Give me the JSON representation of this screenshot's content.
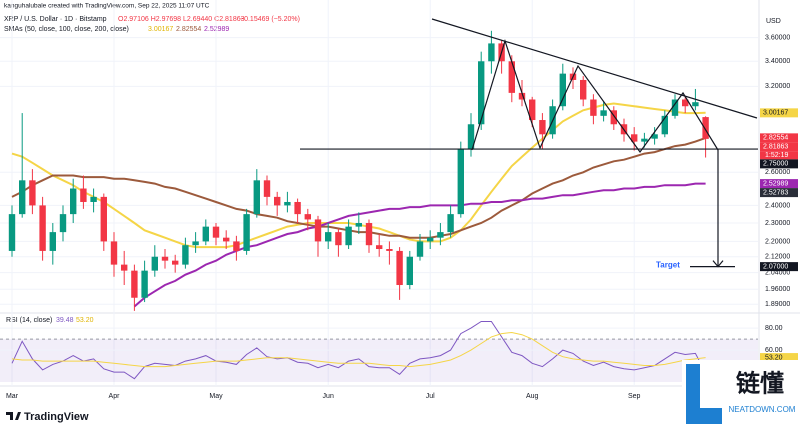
{
  "header": {
    "credit": "kanguhalubale created with TradingView.com, Sep 22, 2025 11:07 UTC",
    "symbol": "XRP / U.S. Dollar · 1D · Bitstamp",
    "ohlc_text": "O2.97106 H2.97698 L2.69440 C2.81863",
    "change": "−0.15469 (−5.20%)",
    "sma_title": "SMAs (50, close, 100, close, 200, close)",
    "sma_values": [
      "3.00167",
      "2.82554",
      "2.52989"
    ],
    "currency": "USD"
  },
  "chart_data": {
    "type": "candlestick",
    "log_scale": true,
    "up_color": "#089981",
    "down_color": "#f23645",
    "categories": [
      "Mar",
      null,
      null,
      null,
      null,
      null,
      null,
      null,
      null,
      null,
      "Apr",
      null,
      null,
      null,
      null,
      null,
      null,
      null,
      null,
      null,
      "May",
      null,
      null,
      null,
      null,
      null,
      null,
      null,
      null,
      null,
      null,
      "Jun",
      null,
      null,
      null,
      null,
      null,
      null,
      null,
      null,
      null,
      "Jul",
      null,
      null,
      null,
      null,
      null,
      null,
      null,
      null,
      null,
      "Aug",
      null,
      null,
      null,
      null,
      null,
      null,
      null,
      null,
      null,
      "Sep",
      null,
      null,
      null,
      null,
      null,
      null,
      null
    ],
    "ohlc": [
      [
        2.15,
        2.4,
        2.12,
        2.35
      ],
      [
        2.35,
        3.0,
        2.33,
        2.55
      ],
      [
        2.55,
        2.62,
        2.35,
        2.4
      ],
      [
        2.4,
        2.45,
        2.1,
        2.15
      ],
      [
        2.15,
        2.3,
        2.08,
        2.25
      ],
      [
        2.25,
        2.4,
        2.2,
        2.35
      ],
      [
        2.35,
        2.56,
        2.3,
        2.5
      ],
      [
        2.5,
        2.58,
        2.38,
        2.42
      ],
      [
        2.42,
        2.5,
        2.36,
        2.45
      ],
      [
        2.45,
        2.47,
        2.15,
        2.2
      ],
      [
        2.2,
        2.25,
        2.02,
        2.08
      ],
      [
        2.08,
        2.15,
        1.98,
        2.05
      ],
      [
        2.05,
        2.08,
        1.86,
        1.92
      ],
      [
        1.92,
        2.1,
        1.9,
        2.05
      ],
      [
        2.05,
        2.18,
        2.02,
        2.12
      ],
      [
        2.12,
        2.16,
        2.06,
        2.1
      ],
      [
        2.1,
        2.13,
        2.04,
        2.08
      ],
      [
        2.08,
        2.22,
        2.06,
        2.18
      ],
      [
        2.18,
        2.25,
        2.14,
        2.2
      ],
      [
        2.2,
        2.32,
        2.18,
        2.28
      ],
      [
        2.28,
        2.3,
        2.18,
        2.22
      ],
      [
        2.22,
        2.26,
        2.16,
        2.2
      ],
      [
        2.2,
        2.23,
        2.1,
        2.15
      ],
      [
        2.15,
        2.38,
        2.13,
        2.35
      ],
      [
        2.35,
        2.62,
        2.33,
        2.55
      ],
      [
        2.55,
        2.58,
        2.4,
        2.45
      ],
      [
        2.45,
        2.48,
        2.34,
        2.4
      ],
      [
        2.4,
        2.48,
        2.36,
        2.42
      ],
      [
        2.42,
        2.44,
        2.3,
        2.35
      ],
      [
        2.35,
        2.38,
        2.26,
        2.32
      ],
      [
        2.32,
        2.34,
        2.12,
        2.2
      ],
      [
        2.2,
        2.3,
        2.16,
        2.25
      ],
      [
        2.25,
        2.27,
        2.12,
        2.18
      ],
      [
        2.18,
        2.32,
        2.16,
        2.28
      ],
      [
        2.28,
        2.36,
        2.24,
        2.3
      ],
      [
        2.3,
        2.32,
        2.14,
        2.18
      ],
      [
        2.18,
        2.24,
        2.12,
        2.16
      ],
      [
        2.16,
        2.2,
        2.08,
        2.15
      ],
      [
        2.15,
        2.17,
        1.91,
        1.98
      ],
      [
        1.98,
        2.15,
        1.96,
        2.12
      ],
      [
        2.12,
        2.24,
        2.1,
        2.2
      ],
      [
        2.2,
        2.26,
        2.16,
        2.22
      ],
      [
        2.22,
        2.3,
        2.18,
        2.25
      ],
      [
        2.25,
        2.4,
        2.22,
        2.35
      ],
      [
        2.35,
        2.8,
        2.33,
        2.75
      ],
      [
        2.75,
        3.0,
        2.7,
        2.92
      ],
      [
        2.92,
        3.48,
        2.88,
        3.4
      ],
      [
        3.4,
        3.66,
        3.3,
        3.55
      ],
      [
        3.55,
        3.58,
        3.3,
        3.4
      ],
      [
        3.4,
        3.45,
        3.08,
        3.15
      ],
      [
        3.15,
        3.25,
        3.05,
        3.1
      ],
      [
        3.1,
        3.12,
        2.9,
        2.95
      ],
      [
        2.95,
        3.0,
        2.75,
        2.85
      ],
      [
        2.85,
        3.1,
        2.82,
        3.05
      ],
      [
        3.05,
        3.38,
        3.02,
        3.3
      ],
      [
        3.3,
        3.35,
        3.18,
        3.25
      ],
      [
        3.25,
        3.28,
        3.05,
        3.1
      ],
      [
        3.1,
        3.14,
        2.92,
        2.98
      ],
      [
        2.98,
        3.08,
        2.94,
        3.02
      ],
      [
        3.02,
        3.05,
        2.88,
        2.92
      ],
      [
        2.92,
        2.96,
        2.8,
        2.85
      ],
      [
        2.85,
        2.9,
        2.74,
        2.8
      ],
      [
        2.8,
        2.86,
        2.76,
        2.82
      ],
      [
        2.82,
        2.9,
        2.78,
        2.85
      ],
      [
        2.85,
        3.02,
        2.83,
        2.98
      ],
      [
        2.98,
        3.14,
        2.96,
        3.1
      ],
      [
        3.1,
        3.13,
        3.0,
        3.05
      ],
      [
        3.05,
        3.18,
        3.02,
        3.08
      ],
      [
        2.97106,
        2.97698,
        2.6944,
        2.81863
      ]
    ],
    "series": [
      {
        "color": "#f5d547",
        "values": [
          2.72,
          2.7,
          2.66,
          2.62,
          2.58,
          2.55,
          2.52,
          2.48,
          2.45,
          2.42,
          2.38,
          2.34,
          2.3,
          2.26,
          2.24,
          2.22,
          2.2,
          2.18,
          2.17,
          2.17,
          2.17,
          2.17,
          2.18,
          2.2,
          2.22,
          2.24,
          2.26,
          2.28,
          2.29,
          2.3,
          2.3,
          2.3,
          2.3,
          2.3,
          2.29,
          2.28,
          2.27,
          2.25,
          2.23,
          2.21,
          2.2,
          2.2,
          2.2,
          2.22,
          2.26,
          2.32,
          2.4,
          2.48,
          2.56,
          2.64,
          2.7,
          2.76,
          2.82,
          2.88,
          2.94,
          2.98,
          3.02,
          3.04,
          3.06,
          3.07,
          3.06,
          3.05,
          3.04,
          3.03,
          3.02,
          3.01,
          3.0,
          3.0,
          3.00167
        ]
      },
      {
        "color": "#9c5a3c",
        "values": [
          2.45,
          2.48,
          2.52,
          2.55,
          2.58,
          2.58,
          2.58,
          2.57,
          2.57,
          2.57,
          2.56,
          2.56,
          2.55,
          2.54,
          2.53,
          2.51,
          2.5,
          2.48,
          2.46,
          2.44,
          2.42,
          2.4,
          2.38,
          2.37,
          2.35,
          2.34,
          2.33,
          2.31,
          2.3,
          2.29,
          2.28,
          2.28,
          2.27,
          2.26,
          2.25,
          2.25,
          2.24,
          2.23,
          2.23,
          2.22,
          2.22,
          2.22,
          2.23,
          2.24,
          2.26,
          2.28,
          2.3,
          2.33,
          2.37,
          2.4,
          2.43,
          2.47,
          2.5,
          2.53,
          2.55,
          2.58,
          2.6,
          2.63,
          2.65,
          2.67,
          2.68,
          2.7,
          2.72,
          2.73,
          2.75,
          2.77,
          2.78,
          2.8,
          2.82554
        ]
      },
      {
        "color": "#9c27b0",
        "values": [
          null,
          null,
          null,
          null,
          null,
          null,
          null,
          null,
          null,
          null,
          null,
          null,
          1.88,
          1.92,
          1.95,
          1.98,
          2.0,
          2.03,
          2.05,
          2.08,
          2.1,
          2.13,
          2.15,
          2.17,
          2.18,
          2.2,
          2.22,
          2.24,
          2.25,
          2.27,
          2.28,
          2.3,
          2.32,
          2.34,
          2.35,
          2.36,
          2.37,
          2.38,
          2.38,
          2.39,
          2.39,
          2.4,
          2.4,
          2.4,
          2.4,
          2.41,
          2.41,
          2.42,
          2.42,
          2.43,
          2.43,
          2.44,
          2.44,
          2.45,
          2.46,
          2.46,
          2.47,
          2.48,
          2.49,
          2.49,
          2.5,
          2.5,
          2.51,
          2.51,
          2.52,
          2.52,
          2.52,
          2.53,
          2.52989
        ]
      }
    ],
    "ylim": [
      1.855,
      3.83
    ],
    "yticks": [
      {
        "value": 3.6,
        "label": "3.60000"
      },
      {
        "value": 3.4,
        "label": "3.40000"
      },
      {
        "value": 3.2,
        "label": "3.20000"
      },
      {
        "value": 2.6,
        "label": "2.60000"
      },
      {
        "value": 2.4,
        "label": "2.40000"
      },
      {
        "value": 2.3,
        "label": "2.30000"
      },
      {
        "value": 2.2,
        "label": "2.20000"
      },
      {
        "value": 2.12,
        "label": "2.12000"
      },
      {
        "value": 2.04,
        "label": "2.04000"
      },
      {
        "value": 1.96,
        "label": "1.96000"
      },
      {
        "value": 1.89,
        "label": "1.89000"
      }
    ],
    "grid": true,
    "price_labels": [
      {
        "value": 3.00167,
        "color": "#f5d547"
      },
      {
        "value": 2.82554,
        "color": "#f23645"
      },
      {
        "value": 2.81863,
        "color": "#f23645"
      },
      {
        "value": 2.75,
        "label": "2.75000",
        "color": "#131722"
      },
      {
        "value": 2.52989,
        "color": "#9c27b0"
      },
      {
        "value": 2.52783,
        "color": "#2a2e39"
      },
      {
        "value": 2.07,
        "label": "2.07000",
        "color": "#131722"
      }
    ],
    "countdown": "1:52:19",
    "support_level": 2.75,
    "target": {
      "label": "Target",
      "value": 2.07
    }
  },
  "rsi": {
    "title": "RSI (14, close)",
    "legend_values": [
      "39.48",
      "53.20"
    ],
    "ylim": [
      31,
      91
    ],
    "band": [
      30,
      70
    ],
    "yticks": [
      {
        "value": 80,
        "label": "80.00"
      },
      {
        "value": 60,
        "label": "60.00"
      }
    ],
    "series": [
      {
        "color": "#7e57c2",
        "values": [
          48,
          68,
          52,
          42,
          47,
          50,
          55,
          50,
          52,
          43,
          40,
          40,
          34,
          45,
          48,
          47,
          46,
          50,
          52,
          55,
          50,
          49,
          47,
          56,
          62,
          54,
          52,
          53,
          49,
          48,
          44,
          47,
          44,
          50,
          52,
          45,
          44,
          44,
          38,
          48,
          52,
          53,
          55,
          60,
          75,
          80,
          86,
          86,
          72,
          58,
          55,
          48,
          45,
          52,
          60,
          57,
          50,
          46,
          49,
          45,
          43,
          42,
          44,
          46,
          52,
          58,
          56,
          57,
          39.48
        ]
      },
      {
        "color": "#f5d547",
        "values": [
          52,
          51,
          51,
          50,
          50,
          50,
          50,
          50,
          50,
          49,
          48,
          47,
          46,
          45,
          45,
          45,
          46,
          47,
          48,
          49,
          50,
          50,
          50,
          51,
          52,
          53,
          53,
          53,
          52,
          51,
          50,
          49,
          48,
          48,
          48,
          48,
          47,
          46,
          46,
          45,
          46,
          47,
          49,
          51,
          55,
          60,
          66,
          72,
          75,
          76,
          74,
          70,
          64,
          58,
          54,
          52,
          51,
          50,
          50,
          49,
          48,
          47,
          46,
          46,
          47,
          49,
          51,
          52,
          53.2
        ]
      }
    ],
    "last_label": {
      "value": 53.2,
      "label": "53.20",
      "color": "#f5d547"
    }
  },
  "footer": {
    "brand": "TradingView"
  },
  "watermark": {
    "title": "链懂",
    "subtitle": "NEATDOWN.COM"
  }
}
